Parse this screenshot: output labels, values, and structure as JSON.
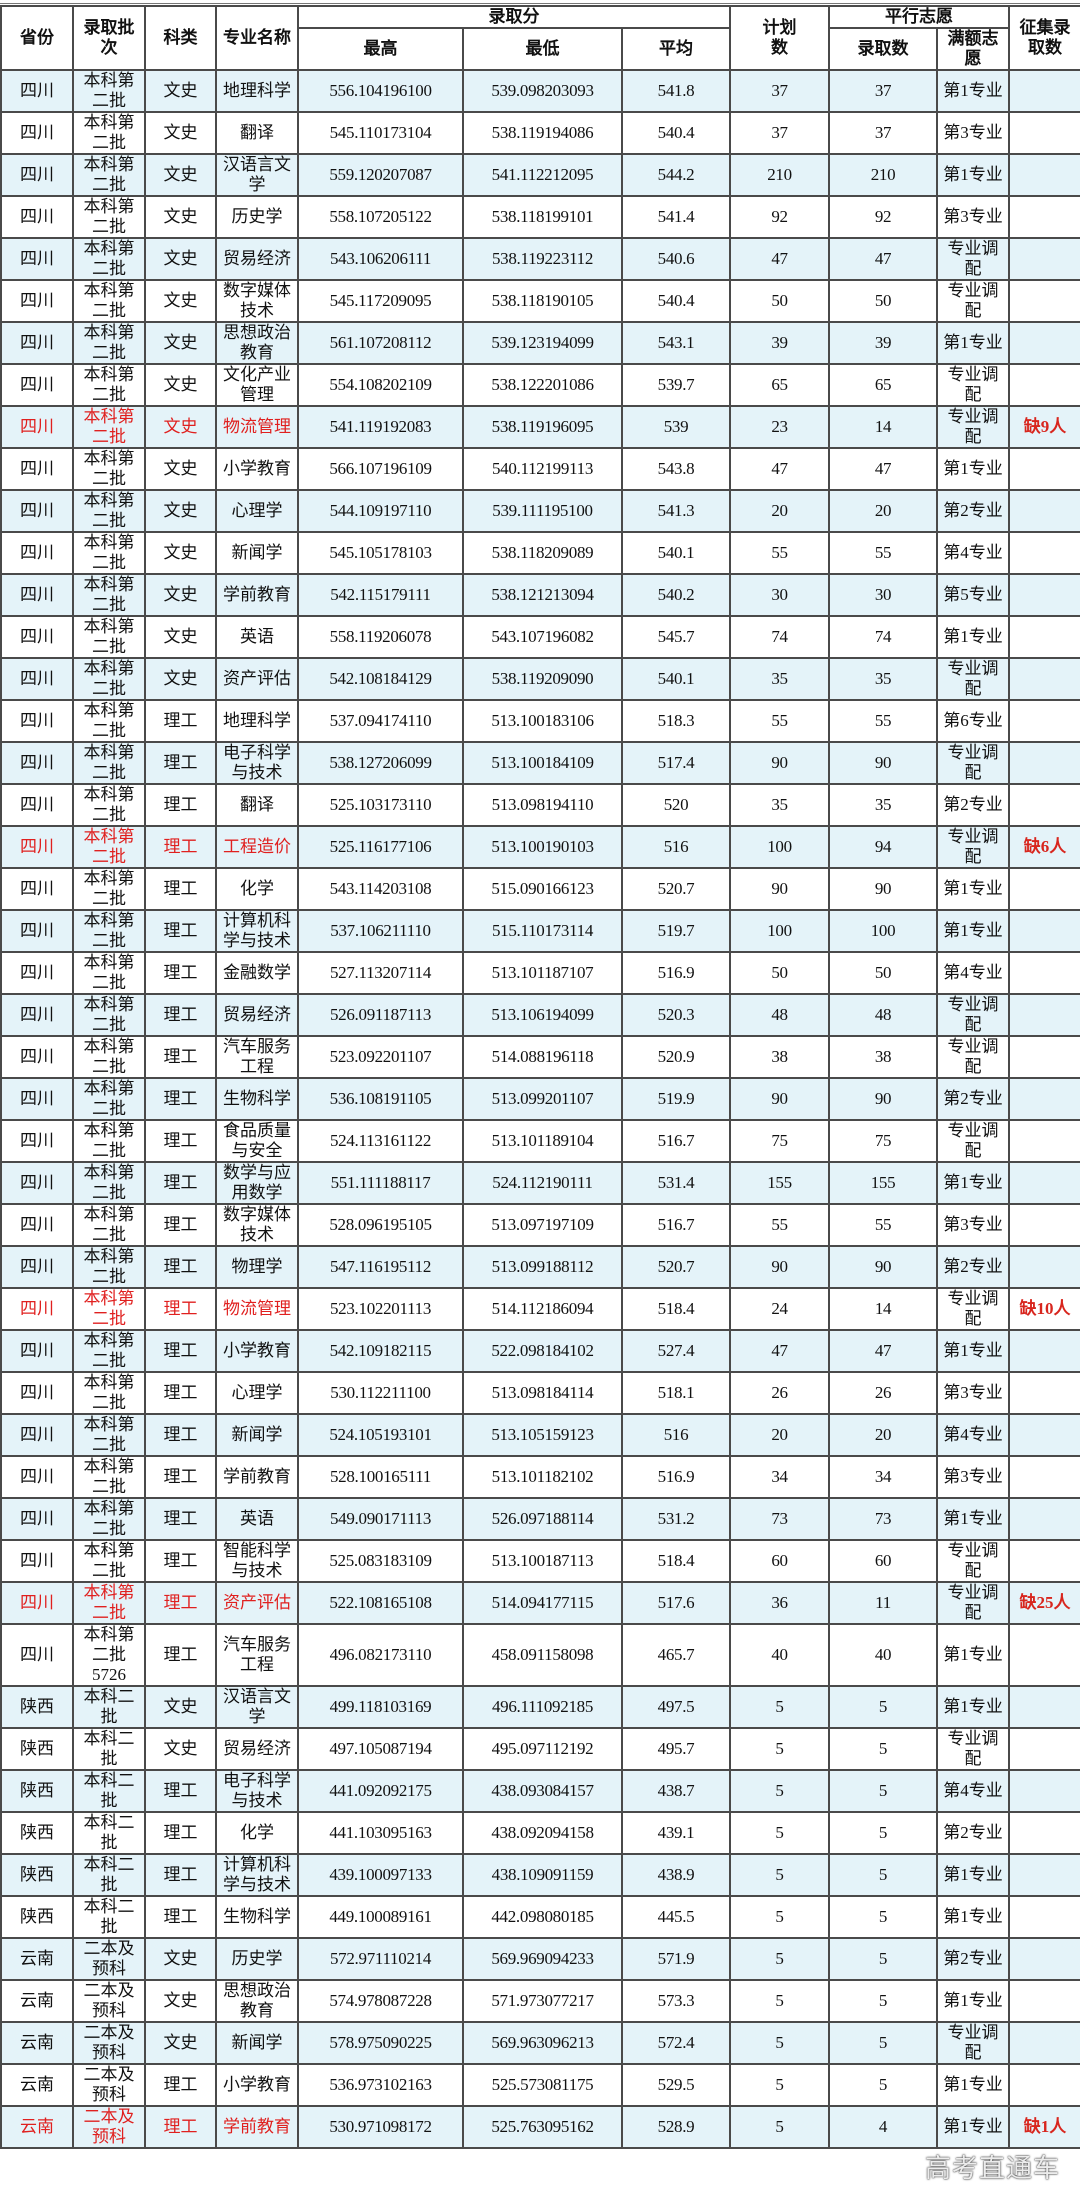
{
  "header": {
    "province": "省份",
    "batch": "录取批次",
    "category": "科类",
    "major": "专业名称",
    "score_group": "录取分",
    "max": "最高",
    "min": "最低",
    "avg": "平均",
    "plan": "计划数",
    "parallel_group": "平行志愿",
    "admitted": "录取数",
    "full_choice": "满额志愿",
    "supplement": "征集录取数"
  },
  "colors": {
    "stripe": "#e4f3f9",
    "highlight_text": "#e0201f",
    "border": "#4a4a4a"
  },
  "rows": [
    [
      "四川",
      "本科第二批",
      "文史",
      "地理科学",
      "556.104196100",
      "539.098203093",
      "541.8",
      "37",
      "37",
      "第1专业",
      "",
      false
    ],
    [
      "四川",
      "本科第二批",
      "文史",
      "翻译",
      "545.110173104",
      "538.119194086",
      "540.4",
      "37",
      "37",
      "第3专业",
      "",
      false
    ],
    [
      "四川",
      "本科第二批",
      "文史",
      "汉语言文学",
      "559.120207087",
      "541.112212095",
      "544.2",
      "210",
      "210",
      "第1专业",
      "",
      false
    ],
    [
      "四川",
      "本科第二批",
      "文史",
      "历史学",
      "558.107205122",
      "538.118199101",
      "541.4",
      "92",
      "92",
      "第3专业",
      "",
      false
    ],
    [
      "四川",
      "本科第二批",
      "文史",
      "贸易经济",
      "543.106206111",
      "538.119223112",
      "540.6",
      "47",
      "47",
      "专业调配",
      "",
      false
    ],
    [
      "四川",
      "本科第二批",
      "文史",
      "数字媒体技术",
      "545.117209095",
      "538.118190105",
      "540.4",
      "50",
      "50",
      "专业调配",
      "",
      false
    ],
    [
      "四川",
      "本科第二批",
      "文史",
      "思想政治教育",
      "561.107208112",
      "539.123194099",
      "543.1",
      "39",
      "39",
      "第1专业",
      "",
      false
    ],
    [
      "四川",
      "本科第二批",
      "文史",
      "文化产业管理",
      "554.108202109",
      "538.122201086",
      "539.7",
      "65",
      "65",
      "专业调配",
      "",
      false
    ],
    [
      "四川",
      "本科第二批",
      "文史",
      "物流管理",
      "541.119192083",
      "538.119196095",
      "539",
      "23",
      "14",
      "专业调配",
      "缺9人",
      true
    ],
    [
      "四川",
      "本科第二批",
      "文史",
      "小学教育",
      "566.107196109",
      "540.112199113",
      "543.8",
      "47",
      "47",
      "第1专业",
      "",
      false
    ],
    [
      "四川",
      "本科第二批",
      "文史",
      "心理学",
      "544.109197110",
      "539.111195100",
      "541.3",
      "20",
      "20",
      "第2专业",
      "",
      false
    ],
    [
      "四川",
      "本科第二批",
      "文史",
      "新闻学",
      "545.105178103",
      "538.118209089",
      "540.1",
      "55",
      "55",
      "第4专业",
      "",
      false
    ],
    [
      "四川",
      "本科第二批",
      "文史",
      "学前教育",
      "542.115179111",
      "538.121213094",
      "540.2",
      "30",
      "30",
      "第5专业",
      "",
      false
    ],
    [
      "四川",
      "本科第二批",
      "文史",
      "英语",
      "558.119206078",
      "543.107196082",
      "545.7",
      "74",
      "74",
      "第1专业",
      "",
      false
    ],
    [
      "四川",
      "本科第二批",
      "文史",
      "资产评估",
      "542.108184129",
      "538.119209090",
      "540.1",
      "35",
      "35",
      "专业调配",
      "",
      false
    ],
    [
      "四川",
      "本科第二批",
      "理工",
      "地理科学",
      "537.094174110",
      "513.100183106",
      "518.3",
      "55",
      "55",
      "第6专业",
      "",
      false
    ],
    [
      "四川",
      "本科第二批",
      "理工",
      "电子科学与技术",
      "538.127206099",
      "513.100184109",
      "517.4",
      "90",
      "90",
      "专业调配",
      "",
      false
    ],
    [
      "四川",
      "本科第二批",
      "理工",
      "翻译",
      "525.103173110",
      "513.098194110",
      "520",
      "35",
      "35",
      "第2专业",
      "",
      false
    ],
    [
      "四川",
      "本科第二批",
      "理工",
      "工程造价",
      "525.116177106",
      "513.100190103",
      "516",
      "100",
      "94",
      "专业调配",
      "缺6人",
      true
    ],
    [
      "四川",
      "本科第二批",
      "理工",
      "化学",
      "543.114203108",
      "515.090166123",
      "520.7",
      "90",
      "90",
      "第1专业",
      "",
      false
    ],
    [
      "四川",
      "本科第二批",
      "理工",
      "计算机科学与技术",
      "537.106211110",
      "515.110173114",
      "519.7",
      "100",
      "100",
      "第1专业",
      "",
      false
    ],
    [
      "四川",
      "本科第二批",
      "理工",
      "金融数学",
      "527.113207114",
      "513.101187107",
      "516.9",
      "50",
      "50",
      "第4专业",
      "",
      false
    ],
    [
      "四川",
      "本科第二批",
      "理工",
      "贸易经济",
      "526.091187113",
      "513.106194099",
      "520.3",
      "48",
      "48",
      "专业调配",
      "",
      false
    ],
    [
      "四川",
      "本科第二批",
      "理工",
      "汽车服务工程",
      "523.092201107",
      "514.088196118",
      "520.9",
      "38",
      "38",
      "专业调配",
      "",
      false
    ],
    [
      "四川",
      "本科第二批",
      "理工",
      "生物科学",
      "536.108191105",
      "513.099201107",
      "519.9",
      "90",
      "90",
      "第2专业",
      "",
      false
    ],
    [
      "四川",
      "本科第二批",
      "理工",
      "食品质量与安全",
      "524.113161122",
      "513.101189104",
      "516.7",
      "75",
      "75",
      "专业调配",
      "",
      false
    ],
    [
      "四川",
      "本科第二批",
      "理工",
      "数学与应用数学",
      "551.111188117",
      "524.112190111",
      "531.4",
      "155",
      "155",
      "第1专业",
      "",
      false
    ],
    [
      "四川",
      "本科第二批",
      "理工",
      "数字媒体技术",
      "528.096195105",
      "513.097197109",
      "516.7",
      "55",
      "55",
      "第3专业",
      "",
      false
    ],
    [
      "四川",
      "本科第二批",
      "理工",
      "物理学",
      "547.116195112",
      "513.099188112",
      "520.7",
      "90",
      "90",
      "第2专业",
      "",
      false
    ],
    [
      "四川",
      "本科第二批",
      "理工",
      "物流管理",
      "523.102201113",
      "514.112186094",
      "518.4",
      "24",
      "14",
      "专业调配",
      "缺10人",
      true
    ],
    [
      "四川",
      "本科第二批",
      "理工",
      "小学教育",
      "542.109182115",
      "522.098184102",
      "527.4",
      "47",
      "47",
      "第1专业",
      "",
      false
    ],
    [
      "四川",
      "本科第二批",
      "理工",
      "心理学",
      "530.112211100",
      "513.098184114",
      "518.1",
      "26",
      "26",
      "第3专业",
      "",
      false
    ],
    [
      "四川",
      "本科第二批",
      "理工",
      "新闻学",
      "524.105193101",
      "513.105159123",
      "516",
      "20",
      "20",
      "第4专业",
      "",
      false
    ],
    [
      "四川",
      "本科第二批",
      "理工",
      "学前教育",
      "528.100165111",
      "513.101182102",
      "516.9",
      "34",
      "34",
      "第3专业",
      "",
      false
    ],
    [
      "四川",
      "本科第二批",
      "理工",
      "英语",
      "549.090171113",
      "526.097188114",
      "531.2",
      "73",
      "73",
      "第1专业",
      "",
      false
    ],
    [
      "四川",
      "本科第二批",
      "理工",
      "智能科学与技术",
      "525.083183109",
      "513.100187113",
      "518.4",
      "60",
      "60",
      "专业调配",
      "",
      false
    ],
    [
      "四川",
      "本科第二批",
      "理工",
      "资产评估",
      "522.108165108",
      "514.094177115",
      "517.6",
      "36",
      "11",
      "专业调配",
      "缺25人",
      true
    ],
    [
      "四川",
      "本科第二批5726",
      "理工",
      "汽车服务工程",
      "496.082173110",
      "458.091158098",
      "465.7",
      "40",
      "40",
      "第1专业",
      "",
      false
    ],
    [
      "陕西",
      "本科二批",
      "文史",
      "汉语言文学",
      "499.118103169",
      "496.111092185",
      "497.5",
      "5",
      "5",
      "第1专业",
      "",
      false
    ],
    [
      "陕西",
      "本科二批",
      "文史",
      "贸易经济",
      "497.105087194",
      "495.097112192",
      "495.7",
      "5",
      "5",
      "专业调配",
      "",
      false
    ],
    [
      "陕西",
      "本科二批",
      "理工",
      "电子科学与技术",
      "441.092092175",
      "438.093084157",
      "438.7",
      "5",
      "5",
      "第4专业",
      "",
      false
    ],
    [
      "陕西",
      "本科二批",
      "理工",
      "化学",
      "441.103095163",
      "438.092094158",
      "439.1",
      "5",
      "5",
      "第2专业",
      "",
      false
    ],
    [
      "陕西",
      "本科二批",
      "理工",
      "计算机科学与技术",
      "439.100097133",
      "438.109091159",
      "438.9",
      "5",
      "5",
      "第1专业",
      "",
      false
    ],
    [
      "陕西",
      "本科二批",
      "理工",
      "生物科学",
      "449.100089161",
      "442.098080185",
      "445.5",
      "5",
      "5",
      "第1专业",
      "",
      false
    ],
    [
      "云南",
      "二本及预科",
      "文史",
      "历史学",
      "572.971110214",
      "569.969094233",
      "571.9",
      "5",
      "5",
      "第2专业",
      "",
      false
    ],
    [
      "云南",
      "二本及预科",
      "文史",
      "思想政治教育",
      "574.978087228",
      "571.973077217",
      "573.3",
      "5",
      "5",
      "第1专业",
      "",
      false
    ],
    [
      "云南",
      "二本及预科",
      "文史",
      "新闻学",
      "578.975090225",
      "569.963096213",
      "572.4",
      "5",
      "5",
      "专业调配",
      "",
      false
    ],
    [
      "云南",
      "二本及预科",
      "理工",
      "小学教育",
      "536.973102163",
      "525.573081175",
      "529.5",
      "5",
      "5",
      "第1专业",
      "",
      false
    ],
    [
      "云南",
      "二本及预科",
      "理工",
      "学前教育",
      "530.971098172",
      "525.763095162",
      "528.9",
      "5",
      "4",
      "第1专业",
      "缺1人",
      true
    ]
  ],
  "watermark": "高考直通车"
}
